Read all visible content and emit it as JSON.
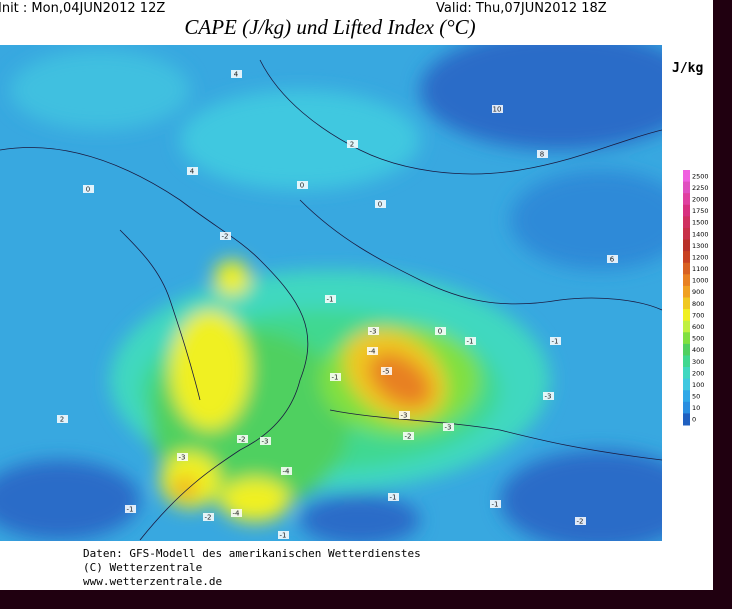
{
  "header": {
    "init": "Init : Mon,04JUN2012 12Z",
    "valid": "Valid: Thu,07JUN2012 18Z",
    "title": "CAPE (J/kg) und Lifted Index (°C)"
  },
  "legend": {
    "unit": "J/kg",
    "ticks": [
      2500,
      2250,
      2000,
      1750,
      1500,
      1400,
      1300,
      1200,
      1100,
      1000,
      900,
      800,
      700,
      600,
      500,
      400,
      300,
      200,
      100,
      50,
      10,
      0
    ],
    "colors": [
      "#f060e0",
      "#e050c0",
      "#e040a0",
      "#d83080",
      "#d03060",
      "#c83048",
      "#b83028",
      "#c84020",
      "#d86020",
      "#e88020",
      "#f0a020",
      "#f0c820",
      "#f0f020",
      "#c0f040",
      "#80e040",
      "#50d060",
      "#40d890",
      "#40d8c0",
      "#40c8e0",
      "#30a8e8",
      "#2a8ee0",
      "#2060c0"
    ]
  },
  "map": {
    "contour_labels": [
      "0",
      "0",
      "10",
      "8",
      "6",
      "4",
      "2",
      "0",
      "-1",
      "-2",
      "-3",
      "-1",
      "-3",
      "-4",
      "-5",
      "-4",
      "-3",
      "-2",
      "-1",
      "-3",
      "-2",
      "-4",
      "-3",
      "-1",
      "-2",
      "-1",
      "-3",
      "-1",
      "4",
      "2",
      "0",
      "-1",
      "-2",
      "-1"
    ]
  },
  "footer": {
    "lines": [
      "Daten: GFS-Modell des amerikanischen Wetterdienstes",
      "(C) Wetterzentrale",
      "www.wetterzentrale.de"
    ]
  }
}
